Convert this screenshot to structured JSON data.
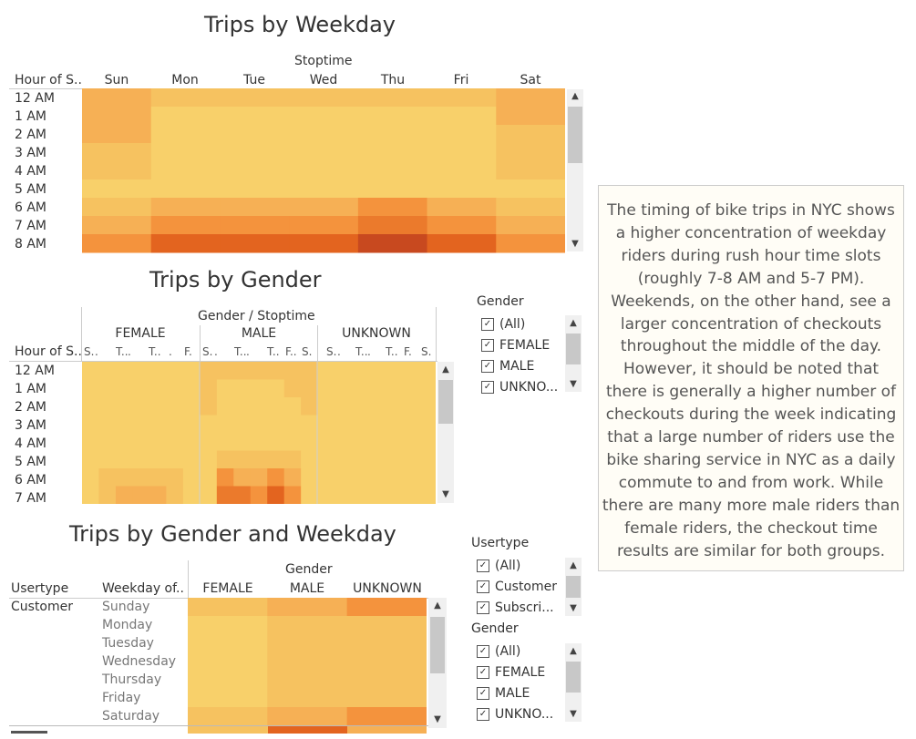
{
  "colors": {
    "scale": [
      "#f8d06a",
      "#f6c260",
      "#f6b055",
      "#f4933d",
      "#eb7a2c",
      "#e3641f",
      "#c8491f"
    ]
  },
  "weekday": {
    "title": "Trips by Weekday",
    "group_header": "Stoptime",
    "row_header": "Hour of S..",
    "days": [
      "Sun",
      "Mon",
      "Tue",
      "Wed",
      "Thu",
      "Fri",
      "Sat"
    ],
    "hours": [
      "12 AM",
      "1 AM",
      "2 AM",
      "3 AM",
      "4 AM",
      "5 AM",
      "6 AM",
      "7 AM",
      "8 AM"
    ]
  },
  "gender": {
    "title": "Trips by Gender",
    "group_header": "Gender / Stoptime",
    "row_header": "Hour of S..",
    "genders": [
      "FEMALE",
      "MALE",
      "UNKNOWN"
    ],
    "sub_abbrev": [
      "S.",
      "T..",
      "T..",
      "F.",
      "S.",
      "S.",
      "T..",
      "T..",
      "F..",
      "S.",
      "S.",
      "T..",
      "T..",
      "F.",
      "S."
    ],
    "hours": [
      "12 AM",
      "1 AM",
      "2 AM",
      "3 AM",
      "4 AM",
      "5 AM",
      "6 AM",
      "7 AM"
    ]
  },
  "gw": {
    "title": "Trips by Gender and Weekday",
    "group_header": "Gender",
    "usertype_header": "Usertype",
    "weekday_header": "Weekday of..",
    "genders": [
      "FEMALE",
      "MALE",
      "UNKNOWN"
    ],
    "usertype": "Customer",
    "weekdays": [
      "Sunday",
      "Monday",
      "Tuesday",
      "Wednesday",
      "Thursday",
      "Friday",
      "Saturday"
    ]
  },
  "filters": {
    "gender1": {
      "title": "Gender",
      "items": [
        "(All)",
        "FEMALE",
        "MALE",
        "UNKNO..."
      ]
    },
    "usertype": {
      "title": "Usertype",
      "items": [
        "(All)",
        "Customer",
        "Subscri..."
      ]
    },
    "gender2": {
      "title": "Gender",
      "items": [
        "(All)",
        "FEMALE",
        "MALE",
        "UNKNO..."
      ]
    }
  },
  "note": "The timing of bike trips in NYC shows a higher concentration of weekday riders during rush hour time slots (roughly 7-8 AM and 5-7 PM). Weekends, on the other hand, see a larger concentration of checkouts throughout the middle of the day. However, it should be noted that there is generally a higher number of checkouts during the week indicating that a large number of riders use the bike sharing service in NYC as a daily commute to and from work. While there are many more male riders than female riders, the checkout time results are similar for both groups.",
  "chart_data": [
    {
      "type": "heatmap",
      "title": "Trips by Weekday",
      "x": [
        "Sun",
        "Mon",
        "Tue",
        "Wed",
        "Thu",
        "Fri",
        "Sat"
      ],
      "y": [
        "12 AM",
        "1 AM",
        "2 AM",
        "3 AM",
        "4 AM",
        "5 AM",
        "6 AM",
        "7 AM",
        "8 AM"
      ],
      "values": [
        [
          2,
          1,
          1,
          1,
          1,
          1,
          2
        ],
        [
          2,
          0,
          0,
          0,
          0,
          0,
          2
        ],
        [
          2,
          0,
          0,
          0,
          0,
          0,
          1
        ],
        [
          1,
          0,
          0,
          0,
          0,
          0,
          1
        ],
        [
          1,
          0,
          0,
          0,
          0,
          0,
          1
        ],
        [
          0,
          0,
          0,
          0,
          0,
          0,
          0
        ],
        [
          1,
          2,
          2,
          2,
          3,
          2,
          1
        ],
        [
          2,
          3,
          3,
          3,
          4,
          3,
          2
        ],
        [
          3,
          5,
          5,
          5,
          6,
          5,
          3
        ]
      ]
    },
    {
      "type": "heatmap",
      "title": "Trips by Gender",
      "x_groups": [
        "FEMALE",
        "MALE",
        "UNKNOWN"
      ],
      "y": [
        "12 AM",
        "1 AM",
        "2 AM",
        "3 AM",
        "4 AM",
        "5 AM",
        "6 AM",
        "7 AM"
      ],
      "values": [
        [
          0,
          0,
          0,
          0,
          0,
          0,
          0,
          1,
          1,
          1,
          1,
          1,
          1,
          1,
          0,
          0,
          0,
          0,
          0,
          0,
          0
        ],
        [
          0,
          0,
          0,
          0,
          0,
          0,
          0,
          1,
          0,
          0,
          0,
          0,
          1,
          1,
          0,
          0,
          0,
          0,
          0,
          0,
          0
        ],
        [
          0,
          0,
          0,
          0,
          0,
          0,
          0,
          1,
          0,
          0,
          0,
          0,
          0,
          1,
          0,
          0,
          0,
          0,
          0,
          0,
          0
        ],
        [
          0,
          0,
          0,
          0,
          0,
          0,
          0,
          0,
          0,
          0,
          0,
          0,
          0,
          0,
          0,
          0,
          0,
          0,
          0,
          0,
          0
        ],
        [
          0,
          0,
          0,
          0,
          0,
          0,
          0,
          0,
          0,
          0,
          0,
          0,
          0,
          0,
          0,
          0,
          0,
          0,
          0,
          0,
          0
        ],
        [
          0,
          0,
          0,
          0,
          0,
          0,
          0,
          0,
          1,
          1,
          1,
          1,
          1,
          0,
          0,
          0,
          0,
          0,
          0,
          0,
          0
        ],
        [
          0,
          1,
          1,
          1,
          1,
          1,
          0,
          0,
          3,
          2,
          2,
          3,
          2,
          0,
          0,
          0,
          0,
          0,
          0,
          0,
          0
        ],
        [
          0,
          1,
          2,
          2,
          2,
          1,
          0,
          0,
          4,
          4,
          3,
          5,
          3,
          0,
          0,
          0,
          0,
          0,
          0,
          0,
          0
        ]
      ]
    },
    {
      "type": "heatmap",
      "title": "Trips by Gender and Weekday",
      "x": [
        "FEMALE",
        "MALE",
        "UNKNOWN"
      ],
      "y": [
        "Sunday",
        "Monday",
        "Tuesday",
        "Wednesday",
        "Thursday",
        "Friday",
        "Saturday"
      ],
      "values": [
        [
          1,
          2,
          3
        ],
        [
          0,
          1,
          1
        ],
        [
          0,
          1,
          1
        ],
        [
          0,
          1,
          1
        ],
        [
          0,
          1,
          1
        ],
        [
          0,
          1,
          1
        ],
        [
          1,
          2,
          3
        ]
      ]
    }
  ]
}
